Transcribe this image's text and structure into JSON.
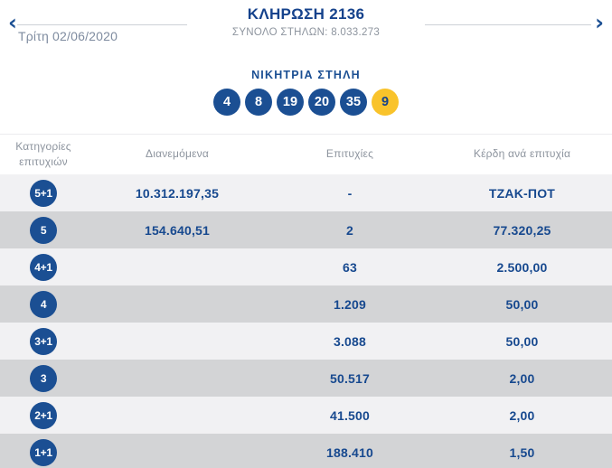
{
  "colors": {
    "brand-blue": "#1B4F93",
    "title-blue": "#15428C",
    "joker-yellow": "#F9C32B",
    "muted-blue-gray": "#7E8B9F",
    "muted-gray": "#8D949E",
    "row-light": "#F1F1F3",
    "row-dark": "#D3D4D6"
  },
  "header": {
    "title": "ΚΛΗΡΩΣΗ 2136",
    "total_columns": "ΣΥΝΟΛΟ ΣΤΗΛΩΝ: 8.033.273",
    "date": "Τρίτη 02/06/2020",
    "prev_icon": "‹",
    "next_icon": "›"
  },
  "winning": {
    "label": "ΝΙΚΗΤΡΙΑ ΣΤΗΛΗ",
    "numbers": [
      "4",
      "8",
      "19",
      "20",
      "35"
    ],
    "joker": "9"
  },
  "table": {
    "headers": [
      "Κατηγορίες επιτυχιών",
      "Διανεμόμενα",
      "Επιτυχίες",
      "Κέρδη ανά επιτυχία"
    ],
    "rows": [
      {
        "category": "5+1",
        "distributed": "10.312.197,35",
        "wins": "-",
        "per_win": "ΤΖΑΚ-ΠΟΤ"
      },
      {
        "category": "5",
        "distributed": "154.640,51",
        "wins": "2",
        "per_win": "77.320,25"
      },
      {
        "category": "4+1",
        "distributed": "",
        "wins": "63",
        "per_win": "2.500,00"
      },
      {
        "category": "4",
        "distributed": "",
        "wins": "1.209",
        "per_win": "50,00"
      },
      {
        "category": "3+1",
        "distributed": "",
        "wins": "3.088",
        "per_win": "50,00"
      },
      {
        "category": "3",
        "distributed": "",
        "wins": "50.517",
        "per_win": "2,00"
      },
      {
        "category": "2+1",
        "distributed": "",
        "wins": "41.500",
        "per_win": "2,00"
      },
      {
        "category": "1+1",
        "distributed": "",
        "wins": "188.410",
        "per_win": "1,50"
      }
    ]
  }
}
